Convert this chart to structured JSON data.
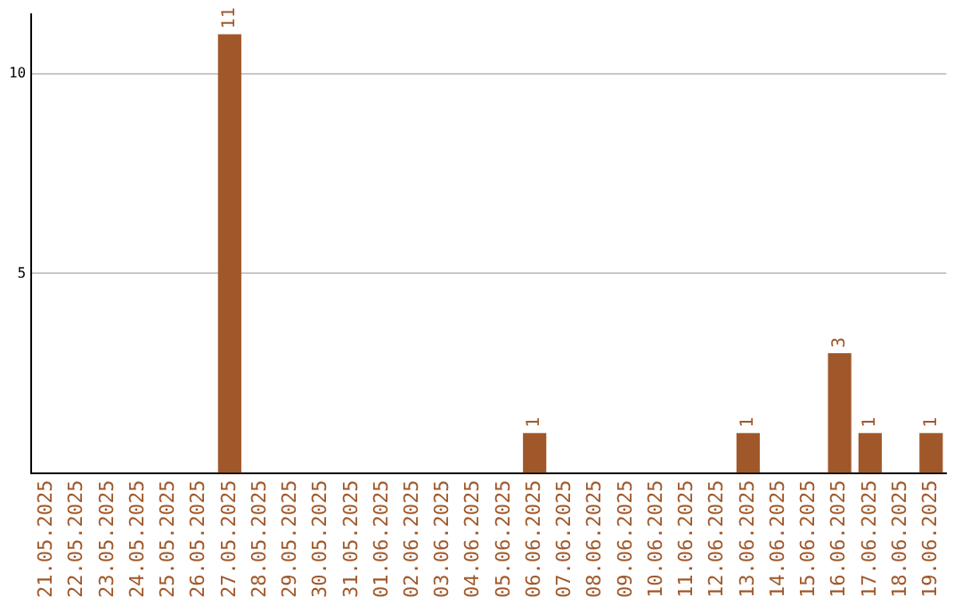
{
  "chart_data": {
    "type": "bar",
    "categories": [
      "21.05.2025",
      "22.05.2025",
      "23.05.2025",
      "24.05.2025",
      "25.05.2025",
      "26.05.2025",
      "27.05.2025",
      "28.05.2025",
      "29.05.2025",
      "30.05.2025",
      "31.05.2025",
      "01.06.2025",
      "02.06.2025",
      "03.06.2025",
      "04.06.2025",
      "05.06.2025",
      "06.06.2025",
      "07.06.2025",
      "08.06.2025",
      "09.06.2025",
      "10.06.2025",
      "11.06.2025",
      "12.06.2025",
      "13.06.2025",
      "14.06.2025",
      "15.06.2025",
      "16.06.2025",
      "17.06.2025",
      "18.06.2025",
      "19.06.2025"
    ],
    "values": [
      0,
      0,
      0,
      0,
      0,
      0,
      11,
      0,
      0,
      0,
      0,
      0,
      0,
      0,
      0,
      0,
      1,
      0,
      0,
      0,
      0,
      0,
      0,
      1,
      0,
      0,
      3,
      1,
      0,
      1
    ],
    "value_labels": [
      null,
      null,
      null,
      null,
      null,
      null,
      "11",
      null,
      null,
      null,
      null,
      null,
      null,
      null,
      null,
      null,
      "1",
      null,
      null,
      null,
      null,
      null,
      null,
      "1",
      null,
      null,
      "3",
      "1",
      null,
      "1"
    ],
    "color": "#a0582a",
    "ylim": [
      0,
      11.5
    ],
    "yticks": [
      5,
      10
    ],
    "grid": "y",
    "legend": false
  }
}
